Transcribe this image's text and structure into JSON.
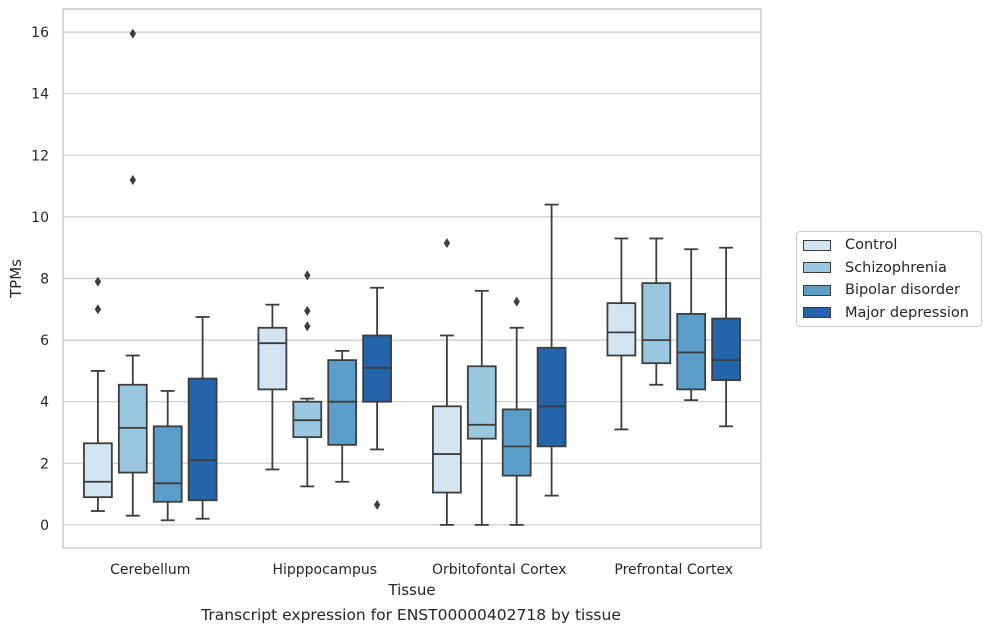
{
  "caption": "Transcript expression for ENST00000402718 by tissue",
  "chart_data": {
    "type": "boxplot",
    "xlabel": "Tissue",
    "ylabel": "TPMs",
    "ylim": [
      -0.75,
      16.75
    ],
    "yticks": [
      0,
      2,
      4,
      6,
      8,
      10,
      12,
      14,
      16
    ],
    "grid": "horizontal",
    "legend_placement": "right",
    "categories": [
      "Cerebellum",
      "Hipppocampus",
      "Orbitofontal Cortex",
      "Prefrontal Cortex"
    ],
    "series": [
      {
        "name": "Control",
        "color": "#d3e4f3",
        "boxes": [
          {
            "whislo": 0.45,
            "q1": 0.9,
            "med": 1.4,
            "q3": 2.65,
            "whishi": 5.0,
            "fliers": [
              7.0,
              7.9
            ]
          },
          {
            "whislo": 1.8,
            "q1": 4.4,
            "med": 5.9,
            "q3": 6.4,
            "whishi": 7.15,
            "fliers": []
          },
          {
            "whislo": 0.0,
            "q1": 1.05,
            "med": 2.3,
            "q3": 3.85,
            "whishi": 6.15,
            "fliers": [
              9.15
            ]
          },
          {
            "whislo": 3.1,
            "q1": 5.5,
            "med": 6.25,
            "q3": 7.2,
            "whishi": 9.3,
            "fliers": []
          }
        ]
      },
      {
        "name": "Schizophrenia",
        "color": "#9ac8e0",
        "boxes": [
          {
            "whislo": 0.3,
            "q1": 1.7,
            "med": 3.15,
            "q3": 4.55,
            "whishi": 5.5,
            "fliers": [
              11.2,
              15.95
            ]
          },
          {
            "whislo": 1.25,
            "q1": 2.85,
            "med": 3.4,
            "q3": 4.0,
            "whishi": 4.1,
            "fliers": [
              6.45,
              6.95,
              8.1
            ]
          },
          {
            "whislo": 0.0,
            "q1": 2.8,
            "med": 3.25,
            "q3": 5.15,
            "whishi": 7.6,
            "fliers": []
          },
          {
            "whislo": 4.55,
            "q1": 5.25,
            "med": 6.0,
            "q3": 7.85,
            "whishi": 9.3,
            "fliers": []
          }
        ]
      },
      {
        "name": "Bipolar disorder",
        "color": "#5a9ec9",
        "boxes": [
          {
            "whislo": 0.15,
            "q1": 0.75,
            "med": 1.35,
            "q3": 3.2,
            "whishi": 4.35,
            "fliers": []
          },
          {
            "whislo": 1.4,
            "q1": 2.6,
            "med": 4.0,
            "q3": 5.35,
            "whishi": 5.65,
            "fliers": []
          },
          {
            "whislo": 0.0,
            "q1": 1.6,
            "med": 2.55,
            "q3": 3.75,
            "whishi": 6.4,
            "fliers": [
              7.25
            ]
          },
          {
            "whislo": 4.05,
            "q1": 4.4,
            "med": 5.6,
            "q3": 6.85,
            "whishi": 8.95,
            "fliers": []
          }
        ]
      },
      {
        "name": "Major depression",
        "color": "#2364aa",
        "boxes": [
          {
            "whislo": 0.2,
            "q1": 0.8,
            "med": 2.1,
            "q3": 4.75,
            "whishi": 6.75,
            "fliers": []
          },
          {
            "whislo": 2.45,
            "q1": 4.0,
            "med": 5.1,
            "q3": 6.15,
            "whishi": 7.7,
            "fliers": [
              0.65
            ]
          },
          {
            "whislo": 0.95,
            "q1": 2.55,
            "med": 3.85,
            "q3": 5.75,
            "whishi": 10.4,
            "fliers": []
          },
          {
            "whislo": 3.2,
            "q1": 4.7,
            "med": 5.35,
            "q3": 6.7,
            "whishi": 9.0,
            "fliers": []
          }
        ]
      }
    ]
  }
}
